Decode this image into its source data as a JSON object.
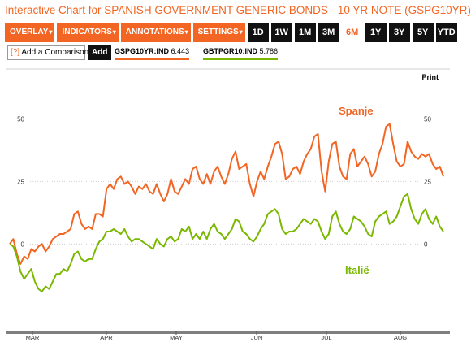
{
  "header": {
    "title": "Interactive Chart for SPANISH GOVERNMENT GENERIC BONDS - 10 YR NOTE (GSPG10YR)"
  },
  "toolbar": {
    "menus": [
      {
        "label": "OVERLAY"
      },
      {
        "label": "INDICATORS"
      },
      {
        "label": "ANNOTATIONS"
      },
      {
        "label": "SETTINGS"
      }
    ],
    "caret": "▾",
    "ranges": [
      {
        "label": "1D",
        "active": false
      },
      {
        "label": "1W",
        "active": false
      },
      {
        "label": "1M",
        "active": false
      },
      {
        "label": "3M",
        "active": false
      },
      {
        "label": "6M",
        "active": true
      },
      {
        "label": "1Y",
        "active": false
      },
      {
        "label": "3Y",
        "active": false
      },
      {
        "label": "5Y",
        "active": false
      },
      {
        "label": "YTD",
        "active": false
      }
    ]
  },
  "compare": {
    "help": "[?]",
    "label": "Add a Comparison",
    "add_label": "Add"
  },
  "legend": [
    {
      "ticker": "GSPG10YR:IND",
      "value": "6.443",
      "color": "#f26522"
    },
    {
      "ticker": "GBTPGR10:IND",
      "value": "5.786",
      "color": "#7ab800"
    }
  ],
  "print_label": "Print",
  "colors": {
    "spain": "#f26522",
    "italy": "#7ab800",
    "accent": "#f26522"
  },
  "chart_data": {
    "type": "line",
    "title": "",
    "xlabel": "",
    "ylabel": "",
    "x_ticks": [
      "MAR",
      "APR",
      "MAY",
      "JUN",
      "JUL",
      "AUG"
    ],
    "y_ticks": [
      0,
      25,
      50
    ],
    "ylim": [
      -35,
      70
    ],
    "grid": true,
    "annotations": [
      {
        "text": "Spanje",
        "series": 0
      },
      {
        "text": "Italië",
        "series": 1
      }
    ],
    "series": [
      {
        "name": "GSPG10YR:IND",
        "values": [
          0,
          2,
          -4,
          -8,
          -5,
          -6,
          -2,
          -3,
          -1,
          0,
          -3,
          -1,
          2,
          3,
          4,
          4,
          5,
          6,
          12,
          13,
          8,
          6,
          7,
          6,
          12,
          12,
          11,
          22,
          24,
          22,
          26,
          27,
          24,
          25,
          23,
          20,
          23,
          22,
          24,
          21,
          20,
          24,
          20,
          17,
          20,
          26,
          21,
          20,
          23,
          26,
          24,
          30,
          31,
          26,
          24,
          28,
          24,
          29,
          31,
          27,
          24,
          28,
          34,
          37,
          30,
          31,
          32,
          24,
          19,
          25,
          29,
          26,
          31,
          35,
          40,
          41,
          36,
          26,
          27,
          30,
          31,
          28,
          33,
          36,
          38,
          43,
          44,
          29,
          21,
          33,
          40,
          41,
          31,
          27,
          26,
          36,
          38,
          31,
          33,
          35,
          32,
          27,
          29,
          36,
          40,
          47,
          48,
          40,
          33,
          31,
          32,
          41,
          37,
          35,
          34,
          36,
          35,
          36,
          32,
          30,
          31,
          27
        ],
        "color": "#f26522"
      },
      {
        "name": "GBTPGR10:IND",
        "values": [
          0,
          -1,
          -5,
          -11,
          -14,
          -12,
          -10,
          -15,
          -18,
          -19,
          -17,
          -18,
          -15,
          -12,
          -12,
          -10,
          -11,
          -8,
          -4,
          -3,
          -6,
          -7,
          -6,
          -6,
          -2,
          1,
          2,
          5,
          5,
          6,
          5,
          4,
          6,
          3,
          1,
          2,
          2,
          1,
          0,
          -1,
          -2,
          2,
          0,
          -1,
          2,
          3,
          1,
          2,
          6,
          5,
          7,
          2,
          4,
          2,
          5,
          2,
          6,
          8,
          5,
          4,
          2,
          4,
          6,
          10,
          9,
          5,
          4,
          2,
          1,
          3,
          6,
          8,
          12,
          13,
          14,
          12,
          6,
          4,
          5,
          5,
          6,
          8,
          10,
          9,
          8,
          10,
          9,
          5,
          2,
          4,
          11,
          13,
          8,
          5,
          4,
          6,
          11,
          10,
          9,
          7,
          4,
          3,
          9,
          11,
          12,
          13,
          8,
          9,
          11,
          15,
          19,
          20,
          14,
          10,
          8,
          12,
          14,
          10,
          8,
          11,
          7,
          5
        ]
      }
    ]
  }
}
